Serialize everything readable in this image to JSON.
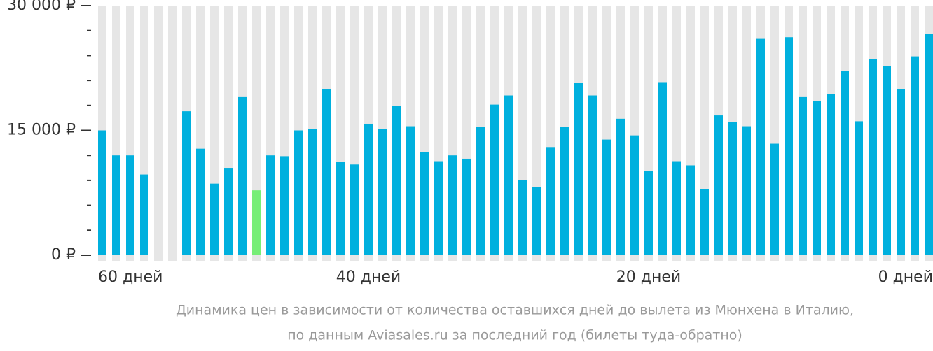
{
  "chart_data": {
    "type": "bar",
    "categories": [
      "60 дней",
      null,
      null,
      null,
      null,
      null,
      null,
      null,
      null,
      null,
      null,
      null,
      null,
      null,
      null,
      null,
      null,
      null,
      null,
      "40 дней",
      null,
      null,
      null,
      null,
      null,
      null,
      null,
      null,
      null,
      null,
      null,
      null,
      null,
      null,
      null,
      null,
      null,
      null,
      null,
      "20 дней",
      null,
      null,
      null,
      null,
      null,
      null,
      null,
      null,
      null,
      null,
      null,
      null,
      null,
      null,
      null,
      null,
      null,
      null,
      null,
      "0 дней"
    ],
    "values": [
      15000,
      12000,
      12000,
      9700,
      null,
      null,
      17300,
      12800,
      8600,
      10500,
      19000,
      7800,
      12000,
      11900,
      15000,
      15200,
      20000,
      11200,
      10900,
      15800,
      15200,
      17900,
      15500,
      12400,
      11300,
      12000,
      11600,
      15400,
      18100,
      19200,
      9000,
      8200,
      13000,
      15400,
      20700,
      19200,
      13900,
      16400,
      14400,
      10100,
      20800,
      11300,
      10800,
      7900,
      16800,
      16000,
      15500,
      26000,
      13400,
      26200,
      19000,
      18500,
      19400,
      22100,
      16100,
      23600,
      22700,
      20000,
      23900,
      26600
    ],
    "colors": [
      "#00b0de",
      "#00b0de",
      "#00b0de",
      "#00b0de",
      "#00b0de",
      "#00b0de",
      "#00b0de",
      "#00b0de",
      "#00b0de",
      "#00b0de",
      "#00b0de",
      "#77ee77",
      "#00b0de",
      "#00b0de",
      "#00b0de",
      "#00b0de",
      "#00b0de",
      "#00b0de",
      "#00b0de",
      "#00b0de",
      "#00b0de",
      "#00b0de",
      "#00b0de",
      "#00b0de",
      "#00b0de",
      "#00b0de",
      "#00b0de",
      "#00b0de",
      "#00b0de",
      "#00b0de",
      "#00b0de",
      "#00b0de",
      "#00b0de",
      "#00b0de",
      "#00b0de",
      "#00b0de",
      "#00b0de",
      "#00b0de",
      "#00b0de",
      "#00b0de",
      "#00b0de",
      "#00b0de",
      "#00b0de",
      "#00b0de",
      "#00b0de",
      "#00b0de",
      "#00b0de",
      "#00b0de",
      "#00b0de",
      "#00b0de",
      "#00b0de",
      "#00b0de",
      "#00b0de",
      "#00b0de",
      "#00b0de",
      "#00b0de",
      "#00b0de",
      "#00b0de",
      "#00b0de",
      "#00b0de"
    ],
    "ylim": [
      0,
      30000
    ],
    "yticks": [
      {
        "value": 0,
        "label": "0 ₽"
      },
      {
        "value": 15000,
        "label": "15 000 ₽"
      },
      {
        "value": 30000,
        "label": "30 000 ₽"
      }
    ],
    "minor_yticks": [
      3000,
      6000,
      9000,
      12000,
      18000,
      21000,
      24000,
      27000
    ],
    "caption": [
      "Динамика цен в зависимости от количества оставшихся дней до вылета из Мюнхена в Италию,",
      "по данным Aviasales.ru за последний год (билеты туда-обратно)"
    ]
  }
}
